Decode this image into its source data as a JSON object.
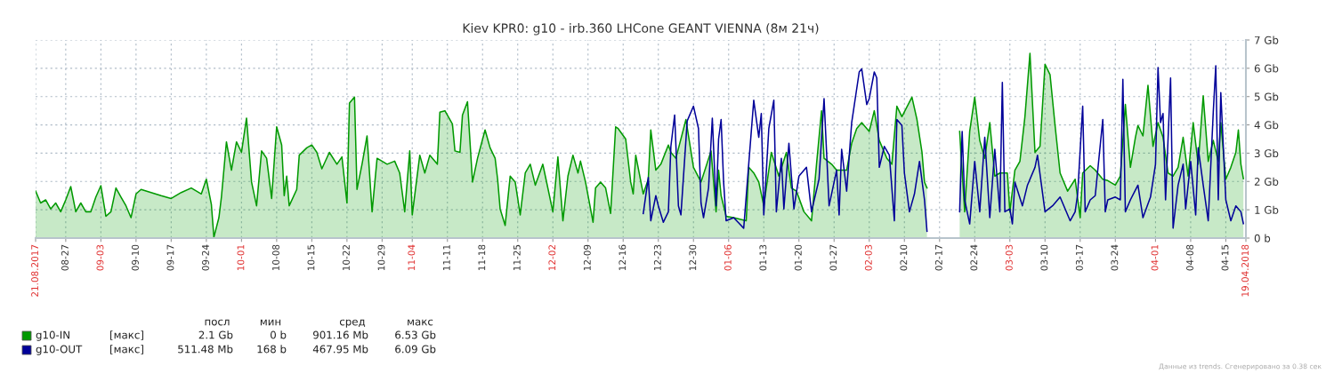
{
  "chart_data": {
    "type": "line",
    "title": "Kiev KPR0: g10 - irb.360 LHCone GEANT VIENNA (8м 21ч)",
    "xlim": [
      "2017-08-21",
      "2018-04-19"
    ],
    "xticks": [
      {
        "value": "2017-08-21",
        "label": "21.08.2017"
      },
      {
        "value": "2017-08-27",
        "label": "08-27"
      },
      {
        "value": "2017-09-03",
        "label": "09-03"
      },
      {
        "value": "2017-09-10",
        "label": "09-10"
      },
      {
        "value": "2017-09-17",
        "label": "09-17"
      },
      {
        "value": "2017-09-24",
        "label": "09-24"
      },
      {
        "value": "2017-10-01",
        "label": "10-01"
      },
      {
        "value": "2017-10-08",
        "label": "10-08"
      },
      {
        "value": "2017-10-15",
        "label": "10-15"
      },
      {
        "value": "2017-10-22",
        "label": "10-22"
      },
      {
        "value": "2017-10-29",
        "label": "10-29"
      },
      {
        "value": "2017-11-04",
        "label": "11-04"
      },
      {
        "value": "2017-11-11",
        "label": "11-11"
      },
      {
        "value": "2017-11-18",
        "label": "11-18"
      },
      {
        "value": "2017-11-25",
        "label": "11-25"
      },
      {
        "value": "2017-12-02",
        "label": "12-02"
      },
      {
        "value": "2017-12-09",
        "label": "12-09"
      },
      {
        "value": "2017-12-16",
        "label": "12-16"
      },
      {
        "value": "2017-12-23",
        "label": "12-23"
      },
      {
        "value": "2017-12-30",
        "label": "12-30"
      },
      {
        "value": "2018-01-06",
        "label": "01-06"
      },
      {
        "value": "2018-01-13",
        "label": "01-13"
      },
      {
        "value": "2018-01-20",
        "label": "01-20"
      },
      {
        "value": "2018-01-27",
        "label": "01-27"
      },
      {
        "value": "2018-02-03",
        "label": "02-03"
      },
      {
        "value": "2018-02-10",
        "label": "02-10"
      },
      {
        "value": "2018-02-17",
        "label": "02-17"
      },
      {
        "value": "2018-02-24",
        "label": "02-24"
      },
      {
        "value": "2018-03-03",
        "label": "03-03"
      },
      {
        "value": "2018-03-10",
        "label": "03-10"
      },
      {
        "value": "2018-03-17",
        "label": "03-17"
      },
      {
        "value": "2018-03-24",
        "label": "03-24"
      },
      {
        "value": "2018-04-01",
        "label": "04-01"
      },
      {
        "value": "2018-04-08",
        "label": "04-08"
      },
      {
        "value": "2018-04-15",
        "label": "04-15"
      },
      {
        "value": "2018-04-19",
        "label": "19.04.2018"
      }
    ],
    "ylim": [
      0,
      7
    ],
    "yticks": [
      {
        "value": 0,
        "label": "0 b"
      },
      {
        "value": 1,
        "label": "1 Gb"
      },
      {
        "value": 2,
        "label": "2 Gb"
      },
      {
        "value": 3,
        "label": "3 Gb"
      },
      {
        "value": 4,
        "label": "4 Gb"
      },
      {
        "value": 5,
        "label": "5 Gb"
      },
      {
        "value": 6,
        "label": "6 Gb"
      },
      {
        "value": 7,
        "label": "7 Gb"
      }
    ],
    "grid": true,
    "legend": "bottom",
    "line_style": "solid",
    "series": [
      {
        "name": "g10-IN",
        "type": "area",
        "color": "#009900",
        "x": [
          "2017-08-21",
          "2017-08-22",
          "2017-08-23",
          "2017-08-24",
          "2017-08-25",
          "2017-08-26",
          "2017-08-27",
          "2017-08-28",
          "2017-08-29",
          "2017-08-30",
          "2017-08-31",
          "2017-09-01",
          "2017-09-02",
          "2017-09-03",
          "2017-09-04",
          "2017-09-05",
          "2017-09-06",
          "2017-09-07",
          "2017-09-08",
          "2017-09-09",
          "2017-09-10",
          "2017-09-11",
          "2017-09-13",
          "2017-09-15",
          "2017-09-17",
          "2017-09-19",
          "2017-09-21",
          "2017-09-23",
          "2017-09-24",
          "2017-09-25",
          "2017-09-25T12:00",
          "2017-09-26T12:00",
          "2017-09-27",
          "2017-09-28",
          "2017-09-29",
          "2017-09-30",
          "2017-10-01",
          "2017-10-02",
          "2017-10-03",
          "2017-10-04",
          "2017-10-05",
          "2017-10-06",
          "2017-10-07",
          "2017-10-08",
          "2017-10-09",
          "2017-10-09T12:00",
          "2017-10-10",
          "2017-10-10T12:00",
          "2017-10-12",
          "2017-10-12T12:00",
          "2017-10-14",
          "2017-10-15",
          "2017-10-16",
          "2017-10-17",
          "2017-10-18T12:00",
          "2017-10-20",
          "2017-10-21",
          "2017-10-22",
          "2017-10-22T12:00",
          "2017-10-23T12:00",
          "2017-10-24",
          "2017-10-25",
          "2017-10-26",
          "2017-10-27",
          "2017-10-28",
          "2017-10-30",
          "2017-10-31T12:00",
          "2017-11-01T12:00",
          "2017-11-02T12:00",
          "2017-11-03T12:00",
          "2017-11-04",
          "2017-11-05T12:00",
          "2017-11-06T12:00",
          "2017-11-07T12:00",
          "2017-11-09",
          "2017-11-09T12:00",
          "2017-11-10T12:00",
          "2017-11-12",
          "2017-11-12T12:00",
          "2017-11-13T12:00",
          "2017-11-14",
          "2017-11-15",
          "2017-11-16",
          "2017-11-17",
          "2017-11-18T12:00",
          "2017-11-19T12:00",
          "2017-11-20T12:00",
          "2017-11-21",
          "2017-11-21T12:00",
          "2017-11-22T12:00",
          "2017-11-23T12:00",
          "2017-11-24T12:00",
          "2017-11-25T12:00",
          "2017-11-26T12:00",
          "2017-11-27T12:00",
          "2017-11-28T12:00",
          "2017-11-30",
          "2017-11-30T12:00",
          "2017-12-02",
          "2017-12-03",
          "2017-12-04",
          "2017-12-05",
          "2017-12-06",
          "2017-12-07",
          "2017-12-07T12:00",
          "2017-12-08T12:00",
          "2017-12-10",
          "2017-12-10T12:00",
          "2017-12-11T12:00",
          "2017-12-12T12:00",
          "2017-12-13T12:00",
          "2017-12-14T12:00",
          "2017-12-15",
          "2017-12-16T12:00",
          "2017-12-17T12:00",
          "2017-12-18",
          "2017-12-18T12:00",
          "2017-12-20",
          "2017-12-21",
          "2017-12-21T12:00",
          "2017-12-22T12:00",
          "2017-12-23T12:00",
          "2017-12-25",
          "2017-12-25T12:00",
          "2017-12-26T12:00",
          "2017-12-28T12:00",
          "2017-12-30",
          "2017-12-31T12:00",
          "2018-01-02T12:00",
          "2018-01-03T12:00",
          "2018-01-04",
          "2018-01-04T12:00",
          "2018-01-05T12:00",
          "2018-01-07",
          "2018-01-09T12:00",
          "2018-01-10",
          "2018-01-11",
          "2018-01-12",
          "2018-01-13",
          "2018-01-14T12:00",
          "2018-01-16",
          "2018-01-17T12:00",
          "2018-01-18T12:00",
          "2018-01-19T12:00",
          "2018-01-21",
          "2018-01-22T12:00",
          "2018-01-23T12:00",
          "2018-01-24T12:00",
          "2018-01-25",
          "2018-01-26T12:00",
          "2018-01-27T12:00",
          "2018-01-29T12:00",
          "2018-01-30T12:00",
          "2018-01-31T12:00",
          "2018-02-01T12:00",
          "2018-02-03",
          "2018-02-04",
          "2018-02-05",
          "2018-02-06T12:00",
          "2018-02-07T12:00",
          "2018-02-08T12:00",
          "2018-02-09T12:00",
          "2018-02-11T12:00",
          "2018-02-12T12:00",
          "2018-02-13T12:00",
          "2018-02-14",
          "2018-02-14T12:00",
          "2018-02-17",
          "2018-02-20T12:00",
          "2018-02-21",
          "2018-02-22",
          "2018-02-23",
          "2018-02-24",
          "2018-02-25",
          "2018-02-26",
          "2018-02-27",
          "2018-02-28",
          "2018-03-01",
          "2018-03-02T12:00",
          "2018-03-03",
          "2018-03-04",
          "2018-03-05",
          "2018-03-06",
          "2018-03-07",
          "2018-03-08",
          "2018-03-09",
          "2018-03-10",
          "2018-03-11",
          "2018-03-12",
          "2018-03-13",
          "2018-03-14T12:00",
          "2018-03-16",
          "2018-03-17",
          "2018-03-17T12:00",
          "2018-03-19",
          "2018-03-20",
          "2018-03-21T12:00",
          "2018-03-22T12:00",
          "2018-03-24",
          "2018-03-25",
          "2018-03-26",
          "2018-03-27",
          "2018-03-28",
          "2018-03-28T12:00",
          "2018-03-29T12:00",
          "2018-03-30T12:00",
          "2018-03-31T12:00",
          "2018-04-01T12:00",
          "2018-04-02T12:00",
          "2018-04-03T12:00",
          "2018-04-04T12:00",
          "2018-04-05T12:00",
          "2018-04-06T12:00",
          "2018-04-07T12:00",
          "2018-04-08T12:00",
          "2018-04-09T12:00",
          "2018-04-10T12:00",
          "2018-04-11T12:00",
          "2018-04-12T12:00",
          "2018-04-13T12:00",
          "2018-04-14",
          "2018-04-15",
          "2018-04-16",
          "2018-04-17",
          "2018-04-17T12:00",
          "2018-04-18",
          "2018-04-18T12:00"
        ],
        "values": [
          1.66,
          1.24,
          1.35,
          1.03,
          1.24,
          0.93,
          1.35,
          1.82,
          0.93,
          1.24,
          0.93,
          0.93,
          1.45,
          1.85,
          0.77,
          0.93,
          1.77,
          1.45,
          1.14,
          0.72,
          1.56,
          1.72,
          1.61,
          1.5,
          1.4,
          1.61,
          1.77,
          1.56,
          2.08,
          1.19,
          0.03,
          0.72,
          1.45,
          3.4,
          2.4,
          3.4,
          3.03,
          4.24,
          1.98,
          1.14,
          3.08,
          2.82,
          1.4,
          3.93,
          3.29,
          1.5,
          2.19,
          1.14,
          1.72,
          2.93,
          3.19,
          3.29,
          3.03,
          2.45,
          3.03,
          2.61,
          2.87,
          1.24,
          4.77,
          4.98,
          1.72,
          2.61,
          3.61,
          0.93,
          2.82,
          2.61,
          2.72,
          2.3,
          0.93,
          3.08,
          0.82,
          2.93,
          2.3,
          2.93,
          2.61,
          4.45,
          4.5,
          4.03,
          3.08,
          3.03,
          4.35,
          4.82,
          1.98,
          2.82,
          3.82,
          3.19,
          2.82,
          2.08,
          1.03,
          0.45,
          2.19,
          1.98,
          0.82,
          2.3,
          2.61,
          1.87,
          2.61,
          2.19,
          0.93,
          2.87,
          0.61,
          2.19,
          2.93,
          2.3,
          2.72,
          1.98,
          0.56,
          1.77,
          1.98,
          1.77,
          0.87,
          3.93,
          3.87,
          3.5,
          1.98,
          1.56,
          2.93,
          1.56,
          2.08,
          3.82,
          2.4,
          2.61,
          3.29,
          3.03,
          2.82,
          4.19,
          2.5,
          1.98,
          3.08,
          0.93,
          2.4,
          1.5,
          0.77,
          0.72,
          0.61,
          2.5,
          2.3,
          1.98,
          1.14,
          3.03,
          2.19,
          3.03,
          1.77,
          1.66,
          0.93,
          0.61,
          2.61,
          4.5,
          2.82,
          2.61,
          2.4,
          2.4,
          3.35,
          3.87,
          4.08,
          3.77,
          4.5,
          3.45,
          2.82,
          2.61,
          4.66,
          4.29,
          4.98,
          4.19,
          3.03,
          1.98,
          1.77,
          null,
          null,
          3.77,
          0.93,
          3.77,
          4.98,
          3.45,
          2.82,
          4.08,
          2.19,
          2.3,
          2.3,
          0.93,
          2.4,
          2.71,
          4.29,
          6.53,
          3.03,
          3.24,
          6.14,
          5.77,
          3.98,
          2.3,
          1.66,
          2.08,
          0.72,
          2.3,
          2.56,
          2.4,
          2.08,
          2.03,
          1.87,
          2.19,
          4.72,
          2.5,
          3.56,
          3.98,
          3.61,
          5.4,
          3.24,
          4.08,
          3.56,
          2.3,
          2.19,
          2.5,
          3.56,
          2.19,
          4.08,
          2.61,
          5.03,
          2.71,
          3.45,
          2.71,
          4.08,
          2.08,
          2.5,
          3.03,
          3.82,
          2.61,
          2.1
        ]
      },
      {
        "name": "g10-OUT",
        "color": "#000099",
        "x": [
          "2017-12-20",
          "2017-12-21",
          "2017-12-21T12:00",
          "2017-12-22T12:00",
          "2017-12-23",
          "2017-12-24",
          "2017-12-25",
          "2017-12-25T12:00",
          "2017-12-26T06:00",
          "2017-12-27",
          "2017-12-27T12:00",
          "2017-12-28T18:00",
          "2017-12-30",
          "2017-12-31",
          "2017-12-31T12:00",
          "2018-01-01",
          "2018-01-02",
          "2018-01-02T18:00",
          "2018-01-03T12:00",
          "2018-01-04",
          "2018-01-04T12:00",
          "2018-01-05",
          "2018-01-05T12:00",
          "2018-01-07",
          "2018-01-09",
          "2018-01-10",
          "2018-01-11",
          "2018-01-12",
          "2018-01-12T12:00",
          "2018-01-13",
          "2018-01-14",
          "2018-01-15",
          "2018-01-15T12:00",
          "2018-01-16T12:00",
          "2018-01-17",
          "2018-01-18",
          "2018-01-19",
          "2018-01-20",
          "2018-01-21T12:00",
          "2018-01-22T12:00",
          "2018-01-24",
          "2018-01-25",
          "2018-01-26",
          "2018-01-27T12:00",
          "2018-01-28",
          "2018-01-28T12:00",
          "2018-01-29T12:00",
          "2018-01-30T12:00",
          "2018-02-01",
          "2018-02-01T12:00",
          "2018-02-02T12:00",
          "2018-02-03",
          "2018-02-04",
          "2018-02-04T12:00",
          "2018-02-05",
          "2018-02-06",
          "2018-02-07",
          "2018-02-08",
          "2018-02-08T12:00",
          "2018-02-09T12:00",
          "2018-02-10",
          "2018-02-11",
          "2018-02-12",
          "2018-02-13",
          "2018-02-14",
          "2018-02-14T12:00",
          "2018-02-17",
          "2018-02-21",
          "2018-02-21T12:00",
          "2018-02-22",
          "2018-02-23",
          "2018-02-24",
          "2018-02-25",
          "2018-02-26",
          "2018-02-27",
          "2018-02-28",
          "2018-03-01",
          "2018-03-01T12:00",
          "2018-03-02",
          "2018-03-03",
          "2018-03-03T12:00",
          "2018-03-04",
          "2018-03-05T12:00",
          "2018-03-06T12:00",
          "2018-03-08",
          "2018-03-08T12:00",
          "2018-03-10",
          "2018-03-11T12:00",
          "2018-03-13",
          "2018-03-15",
          "2018-03-16",
          "2018-03-16T12:00",
          "2018-03-17T12:00",
          "2018-03-18",
          "2018-03-19",
          "2018-03-20",
          "2018-03-21T12:00",
          "2018-03-22",
          "2018-03-22T12:00",
          "2018-03-24",
          "2018-03-25",
          "2018-03-25T12:00",
          "2018-03-26",
          "2018-03-27",
          "2018-03-28T12:00",
          "2018-03-29T12:00",
          "2018-03-31",
          "2018-04-01",
          "2018-04-01T12:00",
          "2018-04-02",
          "2018-04-02T12:00",
          "2018-04-03",
          "2018-04-04",
          "2018-04-04T12:00",
          "2018-04-05T12:00",
          "2018-04-06T12:00",
          "2018-04-07",
          "2018-04-08",
          "2018-04-09",
          "2018-04-09T12:00",
          "2018-04-10T12:00",
          "2018-04-11T12:00",
          "2018-04-12T12:00",
          "2018-04-13",
          "2018-04-13T12:00",
          "2018-04-14",
          "2018-04-15",
          "2018-04-16",
          "2018-04-17",
          "2018-04-18",
          "2018-04-18T12:00"
        ],
        "values": [
          0.87,
          2.14,
          0.61,
          1.5,
          1.14,
          0.56,
          0.93,
          3.24,
          4.35,
          1.14,
          0.82,
          4.14,
          4.66,
          3.87,
          1.24,
          0.72,
          1.77,
          4.24,
          1.14,
          3.5,
          4.19,
          1.98,
          0.61,
          0.72,
          0.35,
          2.61,
          4.87,
          3.56,
          4.4,
          0.82,
          3.87,
          4.87,
          0.93,
          2.82,
          1.03,
          3.35,
          1.03,
          2.19,
          2.5,
          0.93,
          2.08,
          4.93,
          1.14,
          2.4,
          0.82,
          3.14,
          1.66,
          4.08,
          5.87,
          5.98,
          4.72,
          4.93,
          5.87,
          5.66,
          2.5,
          3.24,
          2.93,
          0.61,
          4.19,
          3.98,
          2.3,
          0.93,
          1.56,
          2.71,
          1.35,
          0.24,
          null,
          0.93,
          3.77,
          1.35,
          0.5,
          2.71,
          0.93,
          3.56,
          0.72,
          3.14,
          0.93,
          5.5,
          0.93,
          1.03,
          0.5,
          1.98,
          1.14,
          1.87,
          2.5,
          2.93,
          0.93,
          1.14,
          1.45,
          0.61,
          0.93,
          1.56,
          4.66,
          0.93,
          1.35,
          1.5,
          4.19,
          0.93,
          1.35,
          1.45,
          1.35,
          5.61,
          0.93,
          1.35,
          1.87,
          0.72,
          1.45,
          2.61,
          6.03,
          4.08,
          4.4,
          1.35,
          5.66,
          0.35,
          1.87,
          2.61,
          1.03,
          2.71,
          0.82,
          3.19,
          1.87,
          0.61,
          4.45,
          6.09,
          1.35,
          5.14,
          1.35,
          0.61,
          1.14,
          0.93,
          0.51
        ]
      }
    ],
    "annotations": [
      "посл",
      "мин",
      "сред",
      "макс",
      "[макс]",
      "2.1 Gb",
      "0 b",
      "901.16 Mb",
      "6.53 Gb",
      "[макс]",
      "511.48 Mb",
      "168 b",
      "467.95 Mb",
      "6.09 Gb",
      "Данные из trends. Сгенерировано за 0.38 сек"
    ]
  }
}
